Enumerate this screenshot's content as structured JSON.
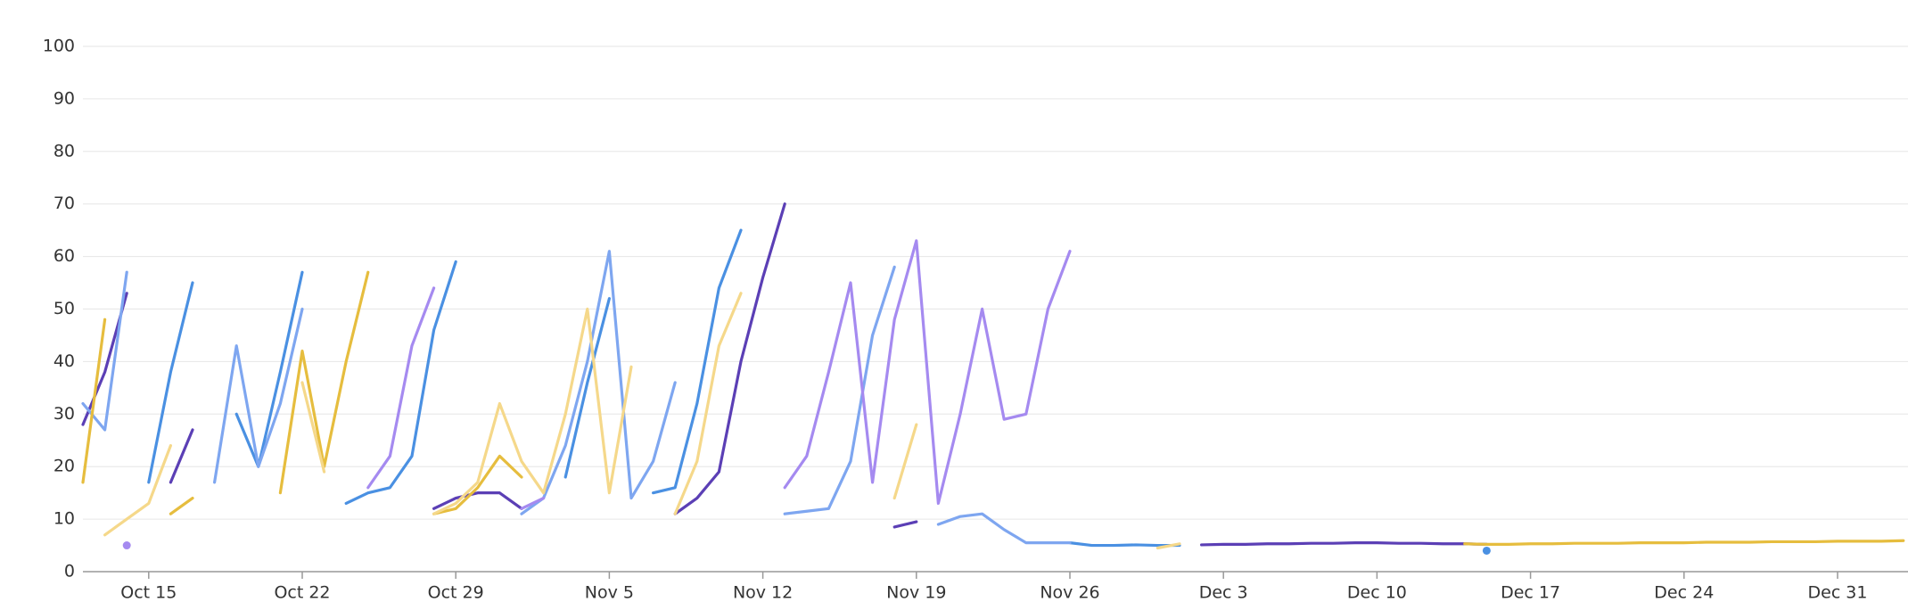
{
  "chart_data": {
    "type": "line",
    "categories": [
      null,
      null,
      null,
      "Oct 15",
      null,
      null,
      null,
      null,
      null,
      null,
      "Oct 22",
      null,
      null,
      null,
      null,
      null,
      null,
      "Oct 29",
      null,
      null,
      null,
      null,
      null,
      null,
      "Nov 5",
      null,
      null,
      null,
      null,
      null,
      null,
      "Nov 12",
      null,
      null,
      null,
      null,
      null,
      null,
      "Nov 19",
      null,
      null,
      null,
      null,
      null,
      null,
      "Nov 26",
      null,
      null,
      null,
      null,
      null,
      null,
      "Dec 3",
      null,
      null,
      null,
      null,
      null,
      null,
      "Dec 10",
      null,
      null,
      null,
      null,
      null,
      null,
      "Dec 17",
      null,
      null,
      null,
      null,
      null,
      null,
      "Dec 24",
      null,
      null,
      null,
      null,
      null,
      null,
      "Dec 31",
      null,
      null,
      null
    ],
    "ylim": [
      0,
      100
    ],
    "yticks": [
      0,
      10,
      20,
      30,
      40,
      50,
      60,
      70,
      80,
      90,
      100
    ],
    "grid": true,
    "series": [
      {
        "color": "#5b3fb5",
        "values": [
          28,
          38,
          53,
          null,
          17,
          27,
          null,
          null,
          null,
          null,
          null,
          null,
          null,
          null,
          null,
          null,
          12,
          14,
          15,
          15,
          12,
          null,
          null,
          null,
          null,
          null,
          null,
          11,
          14,
          19,
          40,
          56,
          70,
          null,
          null,
          null,
          null,
          8.5,
          9.5,
          null,
          null,
          null,
          null,
          null,
          null,
          null,
          null,
          null,
          null,
          null,
          null,
          5.1,
          5.2,
          5.2,
          5.3,
          5.3,
          5.4,
          5.4,
          5.5,
          5.5,
          5.4,
          5.4,
          5.3,
          5.3,
          5.2,
          null,
          null,
          null,
          null,
          null,
          null,
          null,
          null,
          null,
          null,
          null,
          null,
          null,
          null,
          null,
          null,
          null,
          null,
          null
        ]
      },
      {
        "color": "#4a90e2",
        "values": [
          null,
          null,
          null,
          17,
          38,
          55,
          null,
          30,
          20,
          38,
          57,
          null,
          13,
          15,
          16,
          22,
          46,
          59,
          null,
          null,
          null,
          null,
          18,
          36,
          52,
          null,
          15,
          16,
          32,
          54,
          65,
          null,
          null,
          null,
          null,
          null,
          null,
          null,
          null,
          null,
          null,
          null,
          null,
          null,
          null,
          5.5,
          5,
          5,
          5.1,
          5,
          5,
          null,
          null,
          null,
          null,
          null,
          null,
          null,
          null,
          null,
          null,
          null,
          null,
          null,
          4,
          null,
          null,
          null,
          null,
          null,
          null,
          null,
          null,
          null,
          null,
          null,
          null,
          null,
          null,
          null,
          null,
          null,
          null,
          null
        ]
      },
      {
        "color": "#7ea6f0",
        "values": [
          32,
          27,
          57,
          null,
          null,
          null,
          17,
          43,
          20,
          32,
          50,
          null,
          null,
          null,
          null,
          null,
          null,
          null,
          null,
          null,
          11,
          14,
          24,
          40,
          61,
          14,
          21,
          36,
          null,
          null,
          null,
          null,
          11,
          11.5,
          12,
          21,
          45,
          58,
          null,
          9,
          10.5,
          11,
          8,
          5.5,
          5.5,
          5.5,
          null,
          null,
          null,
          null,
          null,
          null,
          null,
          null,
          null,
          null,
          null,
          null,
          null,
          null,
          null,
          null,
          null,
          null,
          null,
          null,
          null,
          null,
          null,
          null,
          null,
          null,
          null,
          null,
          null,
          null,
          null,
          null,
          null,
          null,
          null,
          null,
          null,
          null
        ]
      },
      {
        "color": "#e6bd3e",
        "values": [
          17,
          48,
          null,
          null,
          11,
          14,
          null,
          null,
          null,
          15,
          42,
          20,
          40,
          57,
          null,
          null,
          11,
          12,
          16,
          22,
          18,
          null,
          null,
          null,
          null,
          null,
          null,
          null,
          null,
          null,
          null,
          null,
          null,
          null,
          null,
          null,
          null,
          null,
          null,
          null,
          null,
          null,
          null,
          null,
          null,
          null,
          null,
          null,
          null,
          null,
          null,
          null,
          null,
          null,
          null,
          null,
          null,
          null,
          null,
          null,
          null,
          null,
          null,
          5.3,
          5.2,
          5.2,
          5.3,
          5.3,
          5.4,
          5.4,
          5.4,
          5.5,
          5.5,
          5.5,
          5.6,
          5.6,
          5.6,
          5.7,
          5.7,
          5.7,
          5.8,
          5.8,
          5.8,
          5.9
        ]
      },
      {
        "color": "#f5d88a",
        "values": [
          null,
          7,
          10,
          13,
          24,
          null,
          null,
          null,
          null,
          null,
          36,
          19,
          null,
          null,
          null,
          null,
          11,
          13,
          17,
          32,
          21,
          15,
          30,
          50,
          15,
          39,
          null,
          11,
          21,
          43,
          53,
          null,
          null,
          null,
          null,
          null,
          null,
          14,
          28,
          null,
          null,
          null,
          null,
          null,
          null,
          null,
          null,
          null,
          null,
          4.5,
          5.3,
          null,
          null,
          null,
          null,
          null,
          null,
          null,
          null,
          null,
          null,
          null,
          null,
          null,
          null,
          null,
          null,
          null,
          null,
          null,
          null,
          null,
          null,
          null,
          null,
          null,
          null,
          null,
          null,
          null,
          null,
          null,
          null,
          null
        ]
      },
      {
        "color": "#a58af0",
        "values": [
          null,
          null,
          5,
          null,
          null,
          null,
          null,
          null,
          null,
          null,
          null,
          null,
          null,
          16,
          22,
          43,
          54,
          null,
          null,
          null,
          12,
          14,
          null,
          null,
          null,
          null,
          null,
          null,
          null,
          null,
          null,
          null,
          16,
          22,
          38,
          55,
          17,
          48,
          63,
          13,
          30,
          50,
          29,
          30,
          50,
          61,
          null,
          null,
          null,
          null,
          null,
          null,
          null,
          null,
          null,
          null,
          null,
          null,
          null,
          null,
          null,
          null,
          null,
          null,
          null,
          null,
          null,
          null,
          null,
          null,
          null,
          null,
          null,
          null,
          null,
          null,
          null,
          null,
          null,
          null,
          null,
          null,
          null,
          null
        ]
      }
    ]
  }
}
